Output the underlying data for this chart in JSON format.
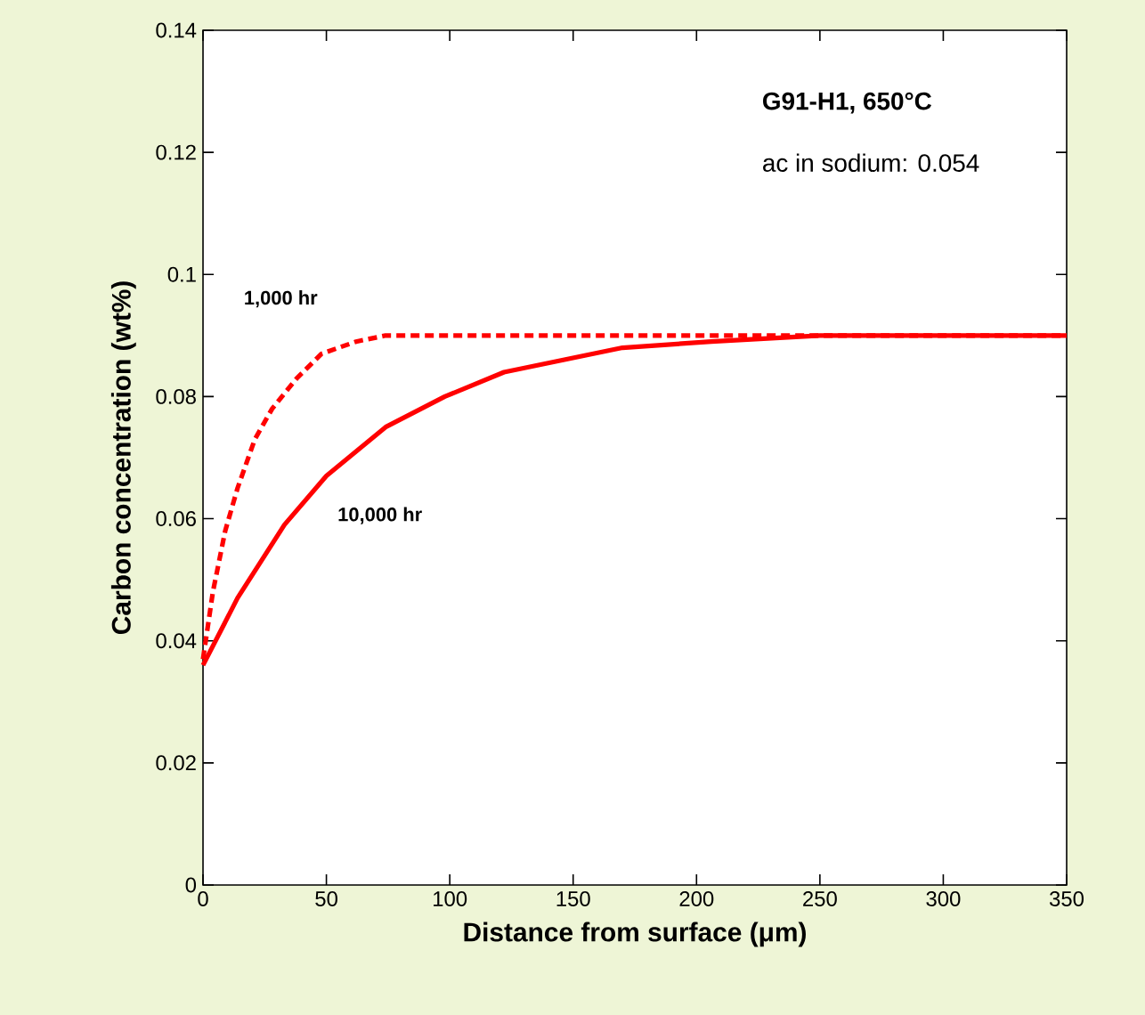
{
  "chart_data": {
    "type": "line",
    "xlabel": "Distance from surface (μm)",
    "ylabel": "Carbon concentration (wt%)",
    "annotations": [
      "G91-H1, 650°C",
      "ac in sodium: 0.054"
    ],
    "xlim": [
      0,
      350
    ],
    "ylim": [
      0,
      0.14
    ],
    "xticks": [
      0,
      50,
      100,
      150,
      200,
      250,
      300,
      350
    ],
    "yticks": [
      0,
      0.02,
      0.04,
      0.06,
      0.08,
      0.1,
      0.12,
      0.14
    ],
    "marker": "none",
    "grid": false,
    "series": [
      {
        "name": "1,000 hr",
        "color": "#ff0000",
        "line_style": "dashed",
        "x": [
          0,
          4,
          9,
          14,
          21,
          28,
          38,
          48,
          62,
          74,
          100,
          350
        ],
        "values": [
          0.037,
          0.048,
          0.058,
          0.065,
          0.073,
          0.078,
          0.083,
          0.087,
          0.089,
          0.09,
          0.09,
          0.09
        ]
      },
      {
        "name": "10,000 hr",
        "color": "#ff0000",
        "line_style": "solid",
        "x": [
          0,
          14,
          33,
          50,
          74,
          98,
          122,
          146,
          170,
          206,
          250,
          300,
          350
        ],
        "values": [
          0.036,
          0.047,
          0.059,
          0.067,
          0.075,
          0.08,
          0.084,
          0.086,
          0.088,
          0.089,
          0.09,
          0.09,
          0.09
        ]
      }
    ]
  }
}
